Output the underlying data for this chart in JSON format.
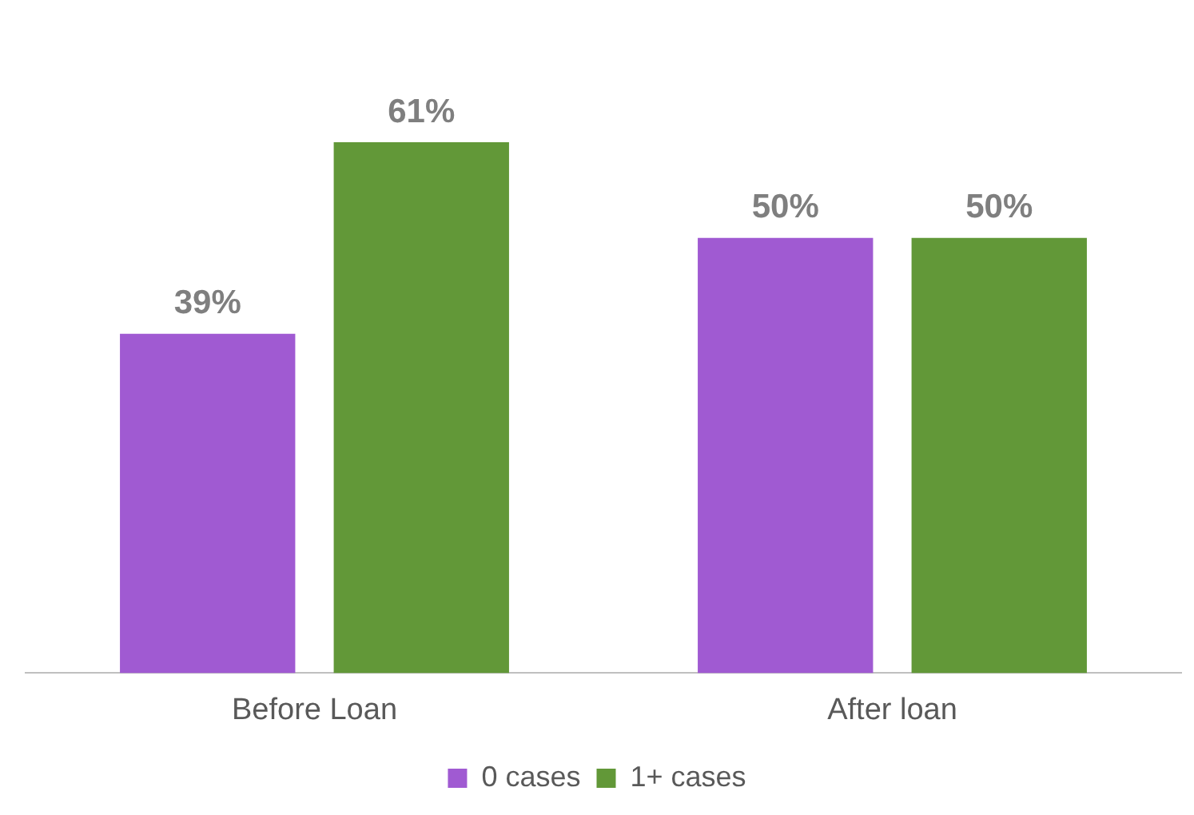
{
  "chart_data": {
    "type": "bar",
    "categories": [
      "Before Loan",
      "After loan"
    ],
    "series": [
      {
        "name": "0 cases",
        "color": "#a05ad2",
        "values": [
          39,
          50
        ],
        "value_labels": [
          "39%",
          "50%"
        ]
      },
      {
        "name": "1+ cases",
        "color": "#629838",
        "values": [
          61,
          50
        ],
        "value_labels": [
          "61%",
          "50%"
        ]
      }
    ],
    "legend": "bottom",
    "grid": false,
    "relative": false
  }
}
